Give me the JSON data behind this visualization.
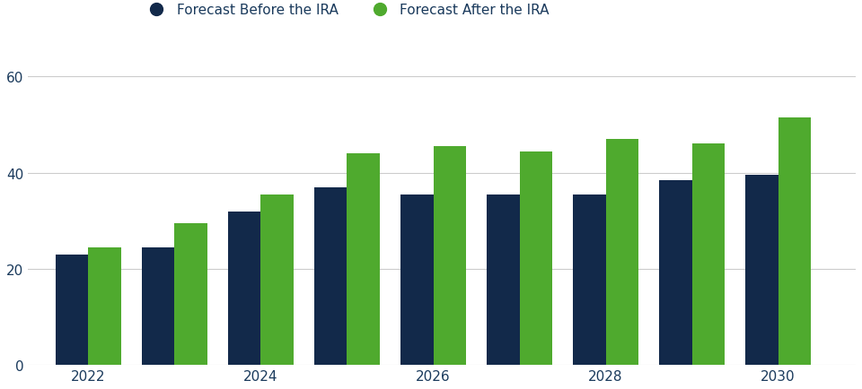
{
  "years": [
    2022,
    2023,
    2024,
    2025,
    2026,
    2027,
    2028,
    2029,
    2030
  ],
  "before_ira": [
    23,
    24.5,
    32,
    37,
    35.5,
    35.5,
    35.5,
    38.5,
    39.5
  ],
  "after_ira": [
    24.5,
    29.5,
    35.5,
    44,
    45.5,
    44.5,
    47,
    46,
    51.5
  ],
  "bar_color_before": "#12294a",
  "bar_color_after": "#4faa2e",
  "legend_label_before": "Forecast Before the IRA",
  "legend_label_after": "Forecast After the IRA",
  "ylim": [
    0,
    65
  ],
  "yticks": [
    0,
    20,
    40,
    60
  ],
  "xtick_positions": [
    2022,
    2024,
    2026,
    2028,
    2030
  ],
  "xtick_labels": [
    "2022",
    "2024",
    "2026",
    "2028",
    "2030"
  ],
  "grid_color": "#cccccc",
  "background_color": "#ffffff",
  "tick_color": "#1a3a5c",
  "bar_width": 0.38,
  "figure_width": 9.6,
  "figure_height": 4.35,
  "dpi": 100
}
